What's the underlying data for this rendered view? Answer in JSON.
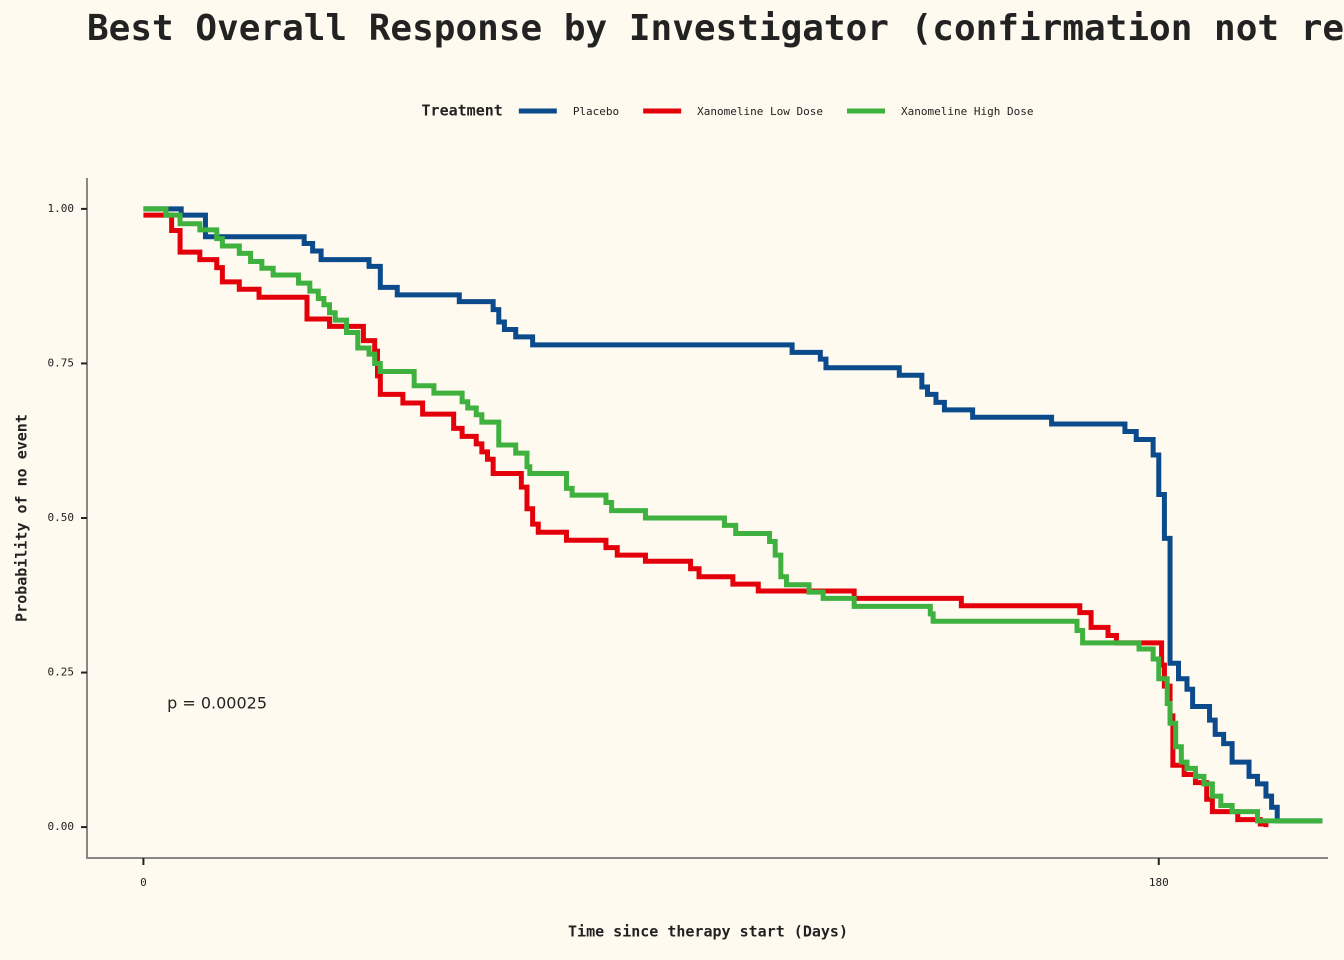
{
  "chart_data": {
    "type": "step",
    "title": "Best Overall Response by Investigator (confirmation not re",
    "x_label": "Time since therapy start (Days)",
    "y_label": "Probability of no event",
    "legend_title": "Treatment",
    "legend_position": "top",
    "annotation": {
      "text": "p = 0.00025",
      "x": 4.2,
      "y": 0.199
    },
    "xlim": [
      -10,
      210
    ],
    "xticks": [
      0,
      180
    ],
    "ylim": [
      -0.05,
      1.05
    ],
    "yticks": [
      {
        "value": 0,
        "label": "0.00"
      },
      {
        "value": 0.25,
        "label": "0.25"
      },
      {
        "value": 0.5,
        "label": "0.50"
      },
      {
        "value": 0.75,
        "label": "0.75"
      },
      {
        "value": 1,
        "label": "1.00"
      }
    ],
    "grid": false,
    "series": [
      {
        "name": "Placebo",
        "color": "#0b4a8b",
        "x": [
          0,
          6.7,
          11,
          28.5,
          30,
          31.5,
          40,
          42,
          45,
          56,
          62,
          63,
          64,
          66,
          69,
          115,
          120,
          121,
          134,
          138,
          139,
          140.5,
          142,
          147,
          161,
          174,
          176,
          179,
          180,
          181,
          182,
          183.5,
          185,
          186,
          189,
          190,
          191.5,
          193,
          196,
          197.5,
          199,
          200,
          201,
          209
        ],
        "values": [
          1.0,
          0.99,
          0.955,
          0.944,
          0.932,
          0.918,
          0.907,
          0.873,
          0.861,
          0.85,
          0.837,
          0.817,
          0.805,
          0.793,
          0.78,
          0.768,
          0.757,
          0.743,
          0.731,
          0.712,
          0.7,
          0.687,
          0.675,
          0.663,
          0.652,
          0.64,
          0.627,
          0.602,
          0.538,
          0.467,
          0.265,
          0.24,
          0.223,
          0.195,
          0.173,
          0.15,
          0.135,
          0.105,
          0.082,
          0.07,
          0.05,
          0.032,
          0.01,
          0.01
        ]
      },
      {
        "name": "Xanomeline Low Dose",
        "color": "#e4000b",
        "x": [
          0,
          5,
          6.5,
          10,
          13,
          14,
          17,
          20.5,
          29,
          33,
          39,
          41,
          41.5,
          42,
          46,
          49.5,
          55,
          56.5,
          59,
          60,
          61,
          62,
          67,
          68,
          69,
          70,
          75,
          82,
          84,
          89,
          97,
          98.5,
          104.5,
          109,
          126,
          145,
          166,
          168,
          171,
          172.5,
          180.5,
          181,
          182,
          182.5,
          184.5,
          186.5,
          188.5,
          189.5,
          194,
          198,
          199
        ],
        "values": [
          0.99,
          0.965,
          0.93,
          0.918,
          0.905,
          0.882,
          0.87,
          0.857,
          0.822,
          0.81,
          0.787,
          0.77,
          0.73,
          0.7,
          0.686,
          0.668,
          0.645,
          0.632,
          0.62,
          0.607,
          0.595,
          0.572,
          0.55,
          0.515,
          0.49,
          0.477,
          0.464,
          0.452,
          0.44,
          0.43,
          0.418,
          0.405,
          0.393,
          0.382,
          0.37,
          0.358,
          0.347,
          0.323,
          0.31,
          0.298,
          0.262,
          0.228,
          0.18,
          0.1,
          0.085,
          0.072,
          0.045,
          0.025,
          0.012,
          0.005,
          0
        ]
      },
      {
        "name": "Xanomeline High Dose",
        "color": "#3fb13e",
        "x": [
          0,
          4,
          6.5,
          10,
          13,
          14,
          17,
          19,
          21,
          23,
          27.5,
          29.5,
          31,
          32,
          33,
          34,
          36,
          38,
          40,
          41,
          42,
          48,
          51.5,
          56.5,
          57.5,
          59,
          60,
          63,
          66,
          68,
          68.5,
          75,
          76,
          82,
          83,
          89,
          103,
          105,
          111,
          112,
          113,
          114,
          118,
          120.5,
          126,
          139.5,
          140,
          165.5,
          166.5,
          176.5,
          179,
          180,
          181.5,
          182,
          183,
          184,
          185,
          186.5,
          188,
          189.5,
          191,
          193,
          197.5,
          209
        ],
        "values": [
          1.0,
          0.99,
          0.976,
          0.966,
          0.952,
          0.94,
          0.928,
          0.915,
          0.904,
          0.893,
          0.88,
          0.867,
          0.855,
          0.845,
          0.832,
          0.82,
          0.8,
          0.775,
          0.765,
          0.75,
          0.737,
          0.714,
          0.702,
          0.688,
          0.678,
          0.667,
          0.655,
          0.618,
          0.605,
          0.583,
          0.572,
          0.548,
          0.537,
          0.525,
          0.512,
          0.5,
          0.488,
          0.475,
          0.462,
          0.44,
          0.405,
          0.392,
          0.38,
          0.37,
          0.357,
          0.345,
          0.333,
          0.318,
          0.298,
          0.288,
          0.272,
          0.24,
          0.2,
          0.168,
          0.13,
          0.105,
          0.095,
          0.082,
          0.07,
          0.05,
          0.035,
          0.025,
          0.01,
          0.01
        ]
      }
    ]
  }
}
